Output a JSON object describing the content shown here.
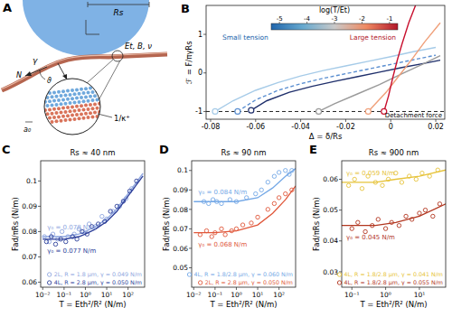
{
  "diagram": {
    "label": "A",
    "radius": "Rs",
    "tension": "γ",
    "force": "N",
    "angle": "ϑ",
    "force_normal": "N",
    "sheet": "Et, B, ν",
    "curvature": "1/κ⁺",
    "spacing": "a₀"
  },
  "chart_data": [
    {
      "panel": "B",
      "type": "line",
      "xlabel": "Δ = δ/Rs",
      "ylabel": "ℱ = F/πγRs",
      "xlim": [
        -0.082,
        0.024
      ],
      "ylim": [
        -1.2,
        1.75
      ],
      "xticks": [
        -0.08,
        -0.06,
        -0.04,
        -0.02,
        0,
        0.02
      ],
      "yticks": [
        -1,
        0,
        1
      ],
      "colorbar": {
        "label": "log(T/Et)",
        "range": [
          -5.3,
          -0.7
        ],
        "ticks": [
          -5,
          -4,
          -3,
          -2,
          -1
        ],
        "colors": [
          "#2166ac",
          "#67a9cf",
          "#c9c9c9",
          "#ef8a62",
          "#b2182b"
        ],
        "low_label": "Small tension",
        "high_label": "Large tension"
      },
      "annotations": [
        {
          "text": "Detachment force",
          "y": -1
        }
      ],
      "series": [
        {
          "color": "#a6cbe8",
          "marker": "first-point",
          "line_style": "solid",
          "x": [
            -0.078,
            -0.07,
            -0.06,
            -0.05,
            -0.04,
            -0.03,
            -0.02,
            -0.01,
            0,
            0.01,
            0.02
          ],
          "values": [
            -1,
            -0.72,
            -0.45,
            -0.25,
            -0.08,
            0.06,
            0.18,
            0.3,
            0.42,
            0.55,
            0.66
          ]
        },
        {
          "color": "#5b8fd1",
          "marker": "first-point",
          "line_style": "dashed",
          "x": [
            -0.068,
            -0.06,
            -0.05,
            -0.04,
            -0.03,
            -0.02,
            -0.01,
            0,
            0.01,
            0.02
          ],
          "values": [
            -1,
            -0.7,
            -0.45,
            -0.28,
            -0.14,
            -0.02,
            0.1,
            0.22,
            0.34,
            0.46
          ]
        },
        {
          "color": "#1f2f6b",
          "marker": "first-point",
          "line_style": "solid",
          "x": [
            -0.062,
            -0.055,
            -0.045,
            -0.035,
            -0.025,
            -0.015,
            -0.005,
            0.005,
            0.015,
            0.022
          ],
          "values": [
            -0.97,
            -0.72,
            -0.5,
            -0.35,
            -0.22,
            -0.1,
            0.02,
            0.14,
            0.25,
            0.33
          ]
        },
        {
          "color": "#9a9a9a",
          "marker": "first-point",
          "line_style": "solid",
          "x": [
            -0.032,
            -0.025,
            -0.015,
            -0.005,
            0.005,
            0.015,
            0.022
          ],
          "values": [
            -1,
            -0.8,
            -0.55,
            -0.3,
            -0.02,
            0.25,
            0.45
          ]
        },
        {
          "color": "#f0a07a",
          "marker": "first-point",
          "line_style": "solid",
          "x": [
            -0.01,
            -0.006,
            -0.002,
            0.002,
            0.006,
            0.01,
            0.015,
            0.022
          ],
          "values": [
            -1,
            -0.75,
            -0.5,
            -0.2,
            0.1,
            0.4,
            0.8,
            1.3
          ]
        },
        {
          "color": "#c8102e",
          "marker": "first-point",
          "line_style": "solid",
          "x": [
            -0.003,
            -0.001,
            0.001,
            0.003,
            0.005,
            0.008,
            0.011
          ],
          "values": [
            -1,
            -0.6,
            -0.1,
            0.35,
            0.75,
            1.3,
            1.75
          ]
        }
      ]
    },
    {
      "panel": "C",
      "type": "scatter",
      "log": "x",
      "title": "Rs ≈ 40 nm",
      "xlabel": "T = Eth²/R² (N/m)",
      "ylabel": "Fad/πRs (N/m)",
      "xlim": [
        0.008,
        600
      ],
      "ylim": [
        0.058,
        0.108
      ],
      "xticks": [
        {
          "value": 0.01,
          "label": "10⁻²"
        },
        {
          "value": 0.1,
          "label": "10⁻¹"
        },
        {
          "value": 1,
          "label": "10⁰"
        },
        {
          "value": 10,
          "label": "10¹"
        },
        {
          "value": 100,
          "label": "10²"
        }
      ],
      "yticks": [
        0.06,
        0.07,
        0.08,
        0.09,
        0.1
      ],
      "legend": "lower right",
      "series": [
        {
          "name": "2L, R = 1.8 μm, γ = 0.049 N/m",
          "type": "scatter",
          "marker": "open-circle",
          "color": "#8ea6e0",
          "x": [
            0.012,
            0.02,
            0.03,
            0.05,
            0.08,
            0.15,
            0.3,
            0.5,
            0.8,
            1.5,
            3,
            6,
            10,
            20,
            40,
            80,
            150
          ],
          "values": [
            0.078,
            0.076,
            0.079,
            0.077,
            0.08,
            0.078,
            0.079,
            0.081,
            0.08,
            0.083,
            0.082,
            0.086,
            0.085,
            0.088,
            0.09,
            0.093,
            0.097
          ]
        },
        {
          "type": "line",
          "color": "#8ea6e0",
          "annotation": "γ₀ = 0.078 N/m",
          "x": [
            0.01,
            0.1,
            0.5,
            1,
            3,
            10,
            30,
            100,
            500
          ],
          "values": [
            0.078,
            0.078,
            0.079,
            0.08,
            0.082,
            0.085,
            0.089,
            0.095,
            0.103
          ]
        },
        {
          "name": "4L, R = 2.8 μm, γ = 0.050 N/m",
          "type": "scatter",
          "marker": "open-circle",
          "color": "#2d3f9a",
          "x": [
            0.015,
            0.025,
            0.04,
            0.07,
            0.12,
            0.25,
            0.4,
            0.7,
            1.2,
            2,
            4,
            8,
            15,
            30,
            60,
            120,
            250
          ],
          "values": [
            0.076,
            0.078,
            0.075,
            0.077,
            0.076,
            0.078,
            0.077,
            0.08,
            0.079,
            0.082,
            0.083,
            0.084,
            0.088,
            0.09,
            0.092,
            0.096,
            0.1
          ]
        },
        {
          "type": "line",
          "color": "#2d3f9a",
          "annotation": "γ₀ = 0.077 N/m",
          "x": [
            0.01,
            0.1,
            0.5,
            1,
            3,
            10,
            30,
            100,
            500
          ],
          "values": [
            0.077,
            0.077,
            0.078,
            0.079,
            0.081,
            0.084,
            0.088,
            0.094,
            0.102
          ]
        }
      ]
    },
    {
      "panel": "D",
      "type": "scatter",
      "log": "x",
      "title": "Rs ≈ 90 nm",
      "xlabel": "T = Eth²/R² (N/m)",
      "ylabel": "Fad/πRs (N/m)",
      "xlim": [
        0.008,
        600
      ],
      "ylim": [
        0.04,
        0.105
      ],
      "xticks": [
        {
          "value": 0.01,
          "label": "10⁻²"
        },
        {
          "value": 0.1,
          "label": "10⁻¹"
        },
        {
          "value": 1,
          "label": "10⁰"
        },
        {
          "value": 10,
          "label": "10¹"
        },
        {
          "value": 100,
          "label": "10²"
        }
      ],
      "yticks": [
        0.05,
        0.06,
        0.07,
        0.08,
        0.09,
        0.1
      ],
      "legend": "lower right",
      "series": [
        {
          "name": "4L, R = 1.8/2.8 μm, γ = 0.060 N/m",
          "type": "scatter",
          "marker": "open-circle",
          "color": "#74a8e6",
          "x": [
            0.03,
            0.05,
            0.08,
            0.12,
            0.2,
            0.5,
            1,
            3,
            8,
            15,
            30,
            60,
            100,
            200,
            300,
            400
          ],
          "values": [
            0.084,
            0.083,
            0.085,
            0.084,
            0.083,
            0.085,
            0.084,
            0.086,
            0.088,
            0.09,
            0.094,
            0.097,
            0.099,
            0.1,
            0.098,
            0.1
          ]
        },
        {
          "type": "line",
          "color": "#74a8e6",
          "annotation": "γ₀ = 0.084 N/m",
          "x": [
            0.01,
            0.1,
            1,
            10,
            50,
            200,
            600
          ],
          "values": [
            0.084,
            0.084,
            0.084,
            0.086,
            0.091,
            0.097,
            0.101
          ]
        },
        {
          "name": "2L, R = 2.8 μm, γ = 0.050 N/m",
          "type": "scatter",
          "marker": "open-circle",
          "color": "#e0573a",
          "x": [
            0.02,
            0.04,
            0.07,
            0.1,
            0.2,
            0.3,
            0.6,
            1,
            2,
            5,
            10,
            30,
            60,
            100,
            200,
            400
          ],
          "values": [
            0.067,
            0.069,
            0.066,
            0.068,
            0.07,
            0.067,
            0.069,
            0.07,
            0.072,
            0.073,
            0.076,
            0.08,
            0.083,
            0.086,
            0.088,
            0.09
          ]
        },
        {
          "type": "line",
          "color": "#e0573a",
          "annotation": "γ₀ = 0.068 N/m",
          "x": [
            0.01,
            0.1,
            1,
            10,
            50,
            200,
            600
          ],
          "values": [
            0.068,
            0.068,
            0.069,
            0.072,
            0.078,
            0.085,
            0.092
          ]
        }
      ]
    },
    {
      "panel": "E",
      "type": "scatter",
      "log": "x",
      "title": "Rs ≈ 900 nm",
      "xlabel": "T = Eth²/R² (N/m)",
      "ylabel": "Fad/πRs (N/m)",
      "xlim": [
        0.05,
        60
      ],
      "ylim": [
        0.025,
        0.066
      ],
      "xticks": [
        {
          "value": 0.1,
          "label": "10⁻¹"
        },
        {
          "value": 1,
          "label": "10⁰"
        },
        {
          "value": 10,
          "label": "10¹"
        }
      ],
      "yticks": [
        0.03,
        0.04,
        0.05,
        0.06
      ],
      "legend": "lower right",
      "series": [
        {
          "name": "4L, R = 1.8/2.8 μm, γ = 0.041 N/m",
          "type": "scatter",
          "marker": "open-circle",
          "color": "#e6c33a",
          "x": [
            0.08,
            0.12,
            0.2,
            0.3,
            0.5,
            0.8,
            1.2,
            2,
            3,
            5,
            8,
            12,
            20,
            35
          ],
          "values": [
            0.058,
            0.06,
            0.057,
            0.061,
            0.059,
            0.058,
            0.06,
            0.062,
            0.059,
            0.061,
            0.06,
            0.062,
            0.061,
            0.063
          ]
        },
        {
          "type": "line",
          "color": "#e6c33a",
          "annotation": "γ₀ = 0.059 N/m",
          "x": [
            0.05,
            0.5,
            2,
            10,
            60
          ],
          "values": [
            0.059,
            0.059,
            0.06,
            0.061,
            0.063
          ]
        },
        {
          "name": "4L, R = 1.8/2.8 μm, γ = 0.055 N/m",
          "type": "scatter",
          "marker": "open-circle",
          "color": "#b2361f",
          "x": [
            0.1,
            0.15,
            0.25,
            0.4,
            0.6,
            1,
            1.5,
            2.5,
            4,
            6,
            10,
            15,
            25,
            40
          ],
          "values": [
            0.044,
            0.046,
            0.043,
            0.045,
            0.047,
            0.044,
            0.046,
            0.045,
            0.048,
            0.047,
            0.049,
            0.05,
            0.048,
            0.052
          ]
        },
        {
          "type": "line",
          "color": "#b2361f",
          "annotation": "γ₀ = 0.045 N/m",
          "x": [
            0.05,
            0.5,
            2,
            10,
            60
          ],
          "values": [
            0.045,
            0.045,
            0.046,
            0.048,
            0.052
          ]
        }
      ]
    }
  ]
}
